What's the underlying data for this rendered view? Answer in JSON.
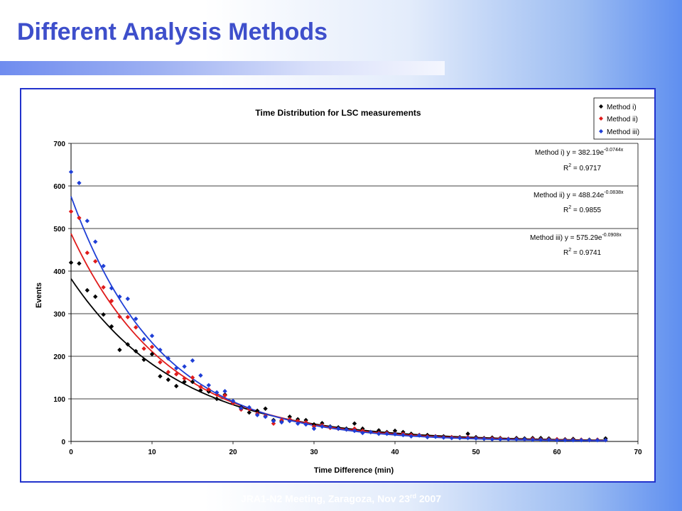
{
  "slide": {
    "title": "Different Analysis Methods",
    "footer_prefix": "JRA1-N2 Meeting, Zaragoza, Nov 23",
    "footer_sup": "rd",
    "footer_suffix": " 2007"
  },
  "chart_data": {
    "type": "scatter",
    "title": "Time Distribution for LSC measurements",
    "xlabel": "Time Difference (min)",
    "ylabel": "Events",
    "xlim": [
      0,
      70
    ],
    "ylim": [
      0,
      700
    ],
    "xticks": [
      "0",
      "10",
      "20",
      "30",
      "40",
      "50",
      "60",
      "70"
    ],
    "yticks": [
      "0",
      "100",
      "200",
      "300",
      "400",
      "500",
      "600",
      "700"
    ],
    "grid": "horizontal",
    "legend_position": "top-right",
    "series": [
      {
        "name": "Method i)",
        "color": "#000000",
        "x": [
          0,
          1,
          2,
          3,
          4,
          5,
          6,
          7,
          8,
          9,
          10,
          11,
          12,
          13,
          14,
          15,
          16,
          17,
          18,
          19,
          20,
          21,
          22,
          23,
          24,
          25,
          26,
          27,
          28,
          29,
          30,
          31,
          32,
          33,
          34,
          35,
          36,
          37,
          38,
          39,
          40,
          41,
          42,
          43,
          44,
          45,
          46,
          47,
          48,
          49,
          50,
          51,
          52,
          53,
          54,
          55,
          56,
          57,
          58,
          59,
          60,
          61,
          62,
          63,
          64,
          65,
          66
        ],
        "y": [
          420,
          418,
          355,
          340,
          298,
          270,
          215,
          228,
          212,
          192,
          205,
          153,
          145,
          130,
          140,
          140,
          120,
          117,
          100,
          110,
          90,
          80,
          68,
          72,
          77,
          50,
          48,
          58,
          52,
          50,
          40,
          43,
          35,
          33,
          30,
          42,
          30,
          22,
          26,
          22,
          25,
          22,
          18,
          15,
          15,
          12,
          12,
          10,
          10,
          18,
          10,
          8,
          9,
          8,
          6,
          8,
          7,
          8,
          8,
          7,
          5,
          5,
          6,
          4,
          4,
          4,
          7
        ],
        "fit": {
          "a": 382.19,
          "b": -0.0744
        },
        "equation": "Method i) y = 382.19e",
        "exponent": "-0.0744x",
        "r2_label": "R",
        "r2_value": " = 0.9717"
      },
      {
        "name": "Method ii)",
        "color": "#e01b1b",
        "x": [
          0,
          1,
          2,
          3,
          4,
          5,
          6,
          7,
          8,
          9,
          10,
          11,
          12,
          13,
          14,
          15,
          16,
          17,
          18,
          19,
          20,
          21,
          22,
          23,
          24,
          25,
          26,
          27,
          28,
          29,
          30,
          31,
          32,
          33,
          34,
          35,
          36,
          37,
          38,
          39,
          40,
          41,
          42,
          43,
          44,
          45,
          46,
          47,
          48,
          49,
          50,
          51,
          52,
          53,
          54,
          55,
          56,
          57,
          58,
          59,
          60,
          61,
          62,
          63,
          64,
          65,
          66
        ],
        "y": [
          540,
          525,
          443,
          423,
          362,
          330,
          293,
          292,
          268,
          218,
          222,
          186,
          163,
          158,
          148,
          150,
          128,
          122,
          110,
          108,
          90,
          75,
          76,
          65,
          60,
          42,
          50,
          52,
          48,
          45,
          35,
          38,
          32,
          30,
          28,
          30,
          25,
          22,
          20,
          20,
          18,
          18,
          15,
          15,
          12,
          12,
          10,
          10,
          9,
          10,
          8,
          7,
          7,
          7,
          6,
          6,
          5,
          6,
          5,
          5,
          5,
          4,
          4,
          4,
          3,
          4,
          3
        ],
        "fit": {
          "a": 488.24,
          "b": -0.0838
        },
        "equation": "Method ii) y = 488.24e",
        "exponent": "-0.0838x",
        "r2_label": "R",
        "r2_value": " = 0.9855"
      },
      {
        "name": "Method iii)",
        "color": "#1f3fd6",
        "x": [
          0,
          1,
          2,
          3,
          4,
          5,
          6,
          7,
          8,
          9,
          10,
          11,
          12,
          13,
          14,
          15,
          16,
          17,
          18,
          19,
          20,
          21,
          22,
          23,
          24,
          25,
          26,
          27,
          28,
          29,
          30,
          31,
          32,
          33,
          34,
          35,
          36,
          37,
          38,
          39,
          40,
          41,
          42,
          43,
          44,
          45,
          46,
          47,
          48,
          49,
          50,
          51,
          52,
          53,
          54,
          55,
          56,
          57,
          58,
          59,
          60,
          61,
          62,
          63,
          64,
          65,
          66
        ],
        "y": [
          633,
          607,
          518,
          469,
          412,
          360,
          340,
          335,
          288,
          240,
          248,
          215,
          195,
          172,
          176,
          190,
          155,
          132,
          115,
          118,
          95,
          78,
          80,
          62,
          58,
          48,
          45,
          48,
          42,
          40,
          30,
          35,
          34,
          30,
          28,
          25,
          20,
          22,
          18,
          18,
          17,
          15,
          12,
          14,
          10,
          11,
          9,
          8,
          8,
          8,
          7,
          6,
          5,
          5,
          5,
          5,
          5,
          4,
          4,
          4,
          3,
          3,
          3,
          3,
          3,
          3,
          3
        ],
        "fit": {
          "a": 575.29,
          "b": -0.0908
        },
        "equation": "Method iii) y = 575.29e",
        "exponent": "-0.0908x",
        "r2_label": "R",
        "r2_value": " = 0.9741"
      }
    ]
  }
}
